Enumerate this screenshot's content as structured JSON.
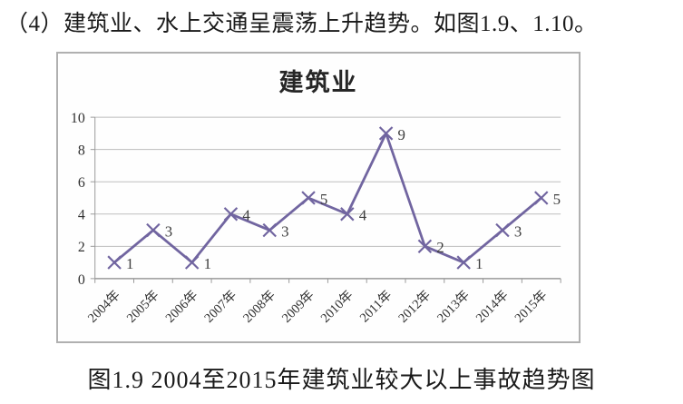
{
  "page": {
    "intro_text": "（4）建筑业、水上交通呈震荡上升趋势。如图1.9、1.10。",
    "caption": "图1.9 2004至2015年建筑业较大以上事故趋势图"
  },
  "chart_data": {
    "type": "line",
    "title": "建筑业",
    "categories": [
      "2004年",
      "2005年",
      "2006年",
      "2007年",
      "2008年",
      "2009年",
      "2010年",
      "2011年",
      "2012年",
      "2013年",
      "2014年",
      "2015年"
    ],
    "values": [
      1,
      3,
      1,
      4,
      3,
      5,
      4,
      9,
      2,
      1,
      3,
      5
    ],
    "xlabel": "",
    "ylabel": "",
    "ylim": [
      0,
      10
    ],
    "yticks": [
      0,
      2,
      4,
      6,
      8,
      10
    ],
    "grid": true,
    "legend_position": "none",
    "marker": "x",
    "data_labels": true,
    "colors": {
      "line": "#7165a0",
      "marker": "#7165a0",
      "gridline": "#bdbdbd",
      "axis": "#9a9a9a",
      "tick_label": "#303030",
      "data_label": "#3d3d3d"
    }
  }
}
